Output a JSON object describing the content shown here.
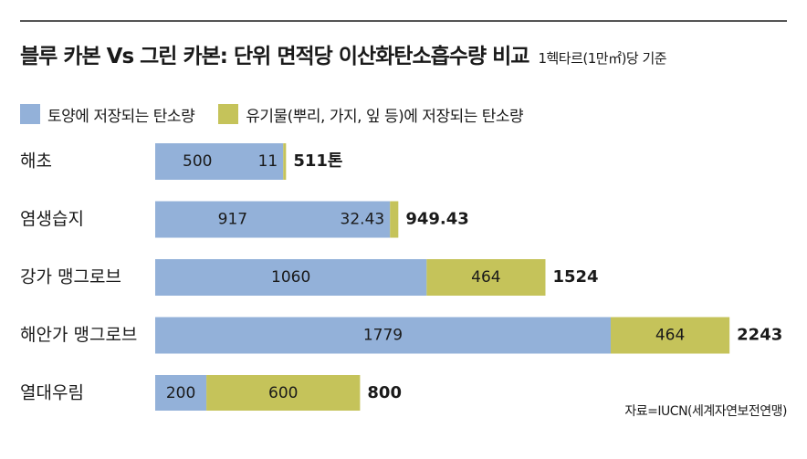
{
  "header": {
    "title": "블루 카본 Vs 그린 카본: 단위 면적당 이산화탄소흡수량 비교",
    "subtitle": "1헥타르(1만㎡)당 기준"
  },
  "source": "자료=IUCN(세계자연보전연맹)",
  "colors": {
    "soil": "#93b1d9",
    "organic": "#c5c35a",
    "text": "#1a1a1a"
  },
  "chart_data": {
    "type": "bar",
    "orientation": "horizontal",
    "stacked": true,
    "categories": [
      "해초",
      "염생습지",
      "강가 맹그로브",
      "해안가 맹그로브",
      "열대우림"
    ],
    "series": [
      {
        "name": "토양에 저장되는 탄소량",
        "values": [
          500,
          917,
          1060,
          1779,
          200
        ],
        "labels": [
          "500",
          "917",
          "1060",
          "1779",
          "200"
        ]
      },
      {
        "name": "유기물(뿌리, 가지, 잎 등)에 저장되는 탄소량",
        "values": [
          11,
          32.43,
          464,
          464,
          600
        ],
        "labels": [
          "11",
          "32.43",
          "464",
          "464",
          "600"
        ]
      }
    ],
    "totals": [
      "511톤",
      "949.43",
      "1524",
      "2243",
      "800"
    ],
    "legend_position": "top",
    "grid": false
  }
}
